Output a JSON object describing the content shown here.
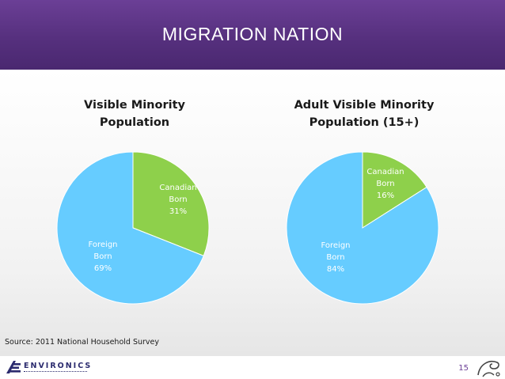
{
  "header": {
    "title": "MIGRATION NATION"
  },
  "colors": {
    "banner": "#56307e",
    "canadian_born": "#8ed04b",
    "foreign_born": "#66ccff",
    "slice_border": "#ffffff"
  },
  "chart_data": [
    {
      "type": "pie",
      "title_lines": [
        "Visible Minority",
        "Population"
      ],
      "slices": [
        {
          "label_lines": [
            "Canadian",
            "Born",
            "31%"
          ],
          "value": 31,
          "color": "#8ed04b"
        },
        {
          "label_lines": [
            "Foreign",
            "Born",
            "69%"
          ],
          "value": 69,
          "color": "#66ccff"
        }
      ]
    },
    {
      "type": "pie",
      "title_lines": [
        "Adult Visible Minority",
        "Population (15+)"
      ],
      "slices": [
        {
          "label_lines": [
            "Canadian",
            "Born",
            "16%"
          ],
          "value": 16,
          "color": "#8ed04b"
        },
        {
          "label_lines": [
            "Foreign",
            "Born",
            "84%"
          ],
          "value": 84,
          "color": "#66ccff"
        }
      ]
    }
  ],
  "source": "Source: 2011 National Household Survey",
  "footer": {
    "logo_text": "ENVIRONICS",
    "logo_icon": "environics-logo-icon",
    "page_number": "15",
    "corner_icon": "swirl-icon"
  }
}
